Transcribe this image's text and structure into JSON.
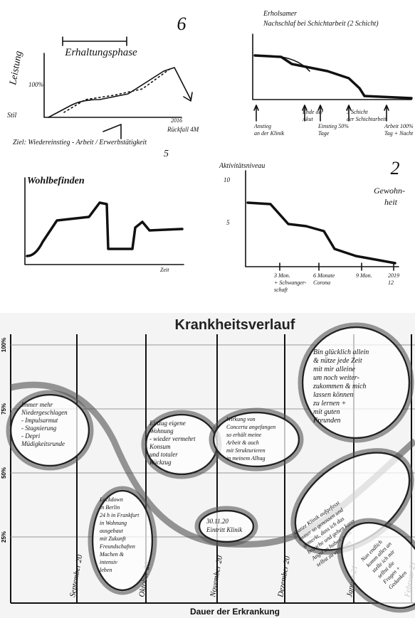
{
  "sketch_1": {
    "number": "6",
    "label": "Erhaltungsphase",
    "y_label": "Leistung",
    "y_top": "100%",
    "y_bottom": "Stil",
    "x_end": "2016",
    "note": "Ziel: Wiedereinstieg - Arbeit / Erwerbstätigkeit",
    "end_note": "Rückfall 4M"
  },
  "sketch_2": {
    "title": [
      "Erholsamer",
      "Nachschlaf bei Schichtarbeit (2 Schicht)"
    ],
    "annotations": [
      [
        "Anstieg",
        "an der Klinik"
      ],
      [
        "Ende der",
        "Akut"
      ],
      [
        "Einstieg 50%",
        "Tage"
      ],
      [
        "3 Schicht",
        "der Schichtarbeit"
      ],
      [
        "Arbeit 100%",
        "Tag + Nacht"
      ]
    ]
  },
  "sketch_3": {
    "label": "Wohlbefinden",
    "x_label": "Zeit",
    "mark": "5"
  },
  "sketch_4": {
    "label": "Aktivitätsniveau",
    "number": "2",
    "side_note": [
      "Gewohn-",
      "heit"
    ],
    "y_top": "10",
    "y_mid": "5",
    "x_labels": [
      [
        "3 Mon.",
        "+ Schwanger-",
        "schaft"
      ],
      [
        "6 Monate",
        "Corona"
      ],
      [
        "9 Mon.",
        ""
      ],
      [
        "2019",
        "12"
      ]
    ]
  },
  "chart": {
    "title": "Krankheitsverlauf",
    "x_title": "Dauer der Erkrankung",
    "y_labels": [
      "100%",
      "75%",
      "50%",
      "25%"
    ],
    "x_labels": [
      "September 20",
      "Oktober 20",
      "November 20",
      "Dezember 20",
      "Januar 21",
      "Februar 21"
    ],
    "notes": [
      [
        "Immer mehr",
        "Niedergeschlagen",
        "- Impulsarmut",
        "- Stagnierung",
        "- Depri",
        "Müdigkeitsrunde"
      ],
      [
        "Lockdown",
        "in Berlin",
        "24 h in Frankfurt",
        "in Wohnung",
        "ausgebaut",
        "mit Zukunft",
        "Freundschaften",
        "Machen &",
        "intensiv",
        "leben"
      ],
      [
        "Einzug eigene",
        "Wohnung",
        "- wieder vermehrt",
        "Konsum",
        "und totaler",
        "Rückzug"
      ],
      [
        "30.11.20",
        "Eintritt Klinik"
      ],
      [
        "Wirkung von",
        "Concerta angefangen",
        "so erhält meine",
        "Arbeit & auch",
        "mit Strukturieren",
        "in meinem Alltag"
      ],
      [
        "Bin glücklich allein",
        "& nütze jede Zeit",
        "mit mir alleine",
        "um noch weiter-",
        "zukommen & mich",
        "lassen können",
        "zu lernen +",
        "mit guten",
        "Freunden"
      ],
      [
        "Ganze Klinik aufgefasst",
        "immer so genossen und",
        "gemerkt, dass ich das",
        "brauche und geben kann",
        "Angst zu haben mich",
        "selbst zu verlieren"
      ],
      [
        "Nun endlich",
        "komm alles an",
        "stelle ich mir",
        "selbst die",
        "Fragen +",
        "Gedanken"
      ]
    ]
  }
}
